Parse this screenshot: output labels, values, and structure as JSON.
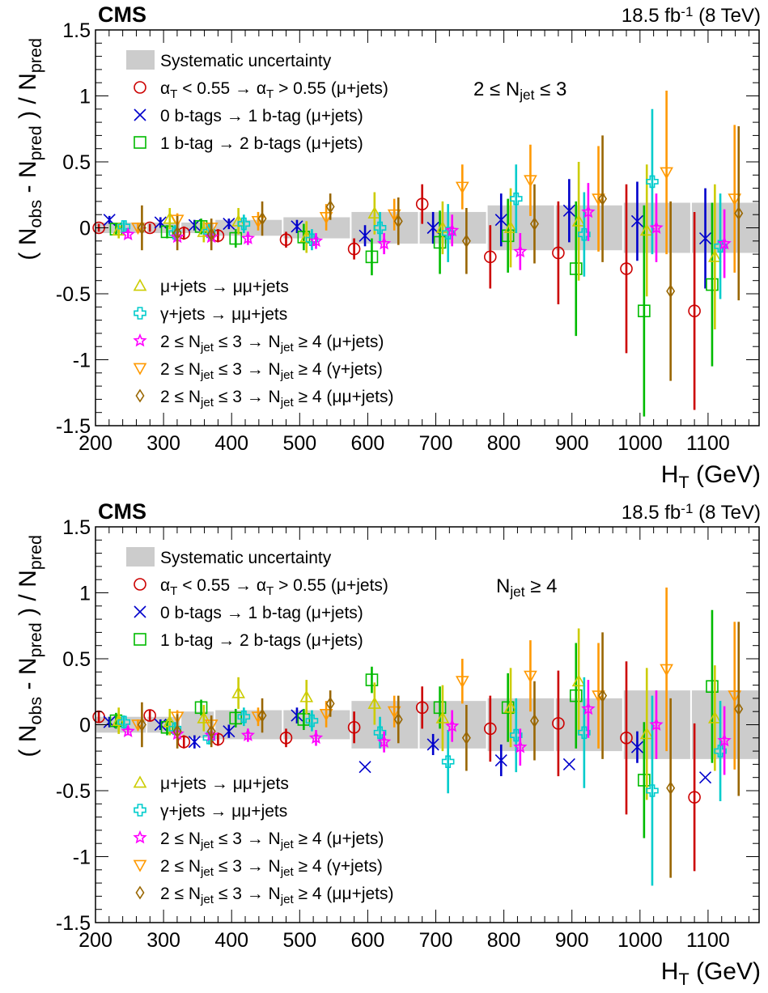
{
  "panels": [
    {
      "experiment": "CMS",
      "luminosity": "18.5 fb",
      "luminosity_exp": "-1",
      "energy": " (8 TeV)",
      "region": "2 ≤ N_jet ≤ 3",
      "legend_top": [
        {
          "key": "syst",
          "label": "Systematic uncertainty"
        },
        {
          "key": "alphaT",
          "label": "α_T < 0.55 → α_T > 0.55 (μ+jets)"
        },
        {
          "key": "btag01",
          "label": "0 b-tags → 1 b-tag (μ+jets)"
        },
        {
          "key": "btag12",
          "label": "1 b-tag → 2 b-tags (μ+jets)"
        }
      ],
      "legend_bottom": [
        {
          "key": "mu2mumu",
          "label": "μ+jets → μμ+jets"
        },
        {
          "key": "gam2mumu",
          "label": "γ+jets → μμ+jets"
        },
        {
          "key": "nj_mu",
          "label": "2 ≤ N_jet ≤ 3 → N_jet ≥ 4 (μ+jets)"
        },
        {
          "key": "nj_gam",
          "label": "2 ≤ N_jet ≤ 3 → N_jet ≥ 4 (γ+jets)"
        },
        {
          "key": "nj_mumu",
          "label": "2 ≤ N_jet ≤ 3 → N_jet ≥ 4 (μμ+jets)"
        }
      ]
    },
    {
      "experiment": "CMS",
      "luminosity": "18.5 fb",
      "luminosity_exp": "-1",
      "energy": " (8 TeV)",
      "region": "N_jet ≥ 4",
      "legend_top": [
        {
          "key": "syst",
          "label": "Systematic uncertainty"
        },
        {
          "key": "alphaT",
          "label": "α_T < 0.55 → α_T > 0.55 (μ+jets)"
        },
        {
          "key": "btag01",
          "label": "0 b-tags → 1 b-tag (μ+jets)"
        },
        {
          "key": "btag12",
          "label": "1 b-tag → 2 b-tags (μ+jets)"
        }
      ],
      "legend_bottom": [
        {
          "key": "mu2mumu",
          "label": "μ+jets → μμ+jets"
        },
        {
          "key": "gam2mumu",
          "label": "γ+jets → μμ+jets"
        },
        {
          "key": "nj_mu",
          "label": "2 ≤ N_jet ≤ 3 → N_jet ≥ 4 (μ+jets)"
        },
        {
          "key": "nj_gam",
          "label": "2 ≤ N_jet ≤ 3 → N_jet ≥ 4 (γ+jets)"
        },
        {
          "key": "nj_mumu",
          "label": "2 ≤ N_jet ≤ 3 → N_jet ≥ 4 (μμ+jets)"
        }
      ]
    }
  ],
  "chart_data": [
    {
      "type": "scatter",
      "xlabel": "H_T (GeV)",
      "ylabel": "( N_obs - N_pred ) / N_pred",
      "xlim": [
        200,
        1175
      ],
      "ylim": [
        -1.5,
        1.5
      ],
      "xticks": [
        200,
        300,
        400,
        500,
        600,
        700,
        800,
        900,
        1000,
        1100
      ],
      "yticks": [
        -1.5,
        -1,
        -0.5,
        0,
        0.5,
        1,
        1.5
      ],
      "grid": false,
      "systematic_bands": [
        {
          "x0": 200,
          "x1": 275,
          "unc": 0.04
        },
        {
          "x0": 275,
          "x1": 325,
          "unc": 0.04
        },
        {
          "x0": 325,
          "x1": 375,
          "unc": 0.04
        },
        {
          "x0": 375,
          "x1": 475,
          "unc": 0.06
        },
        {
          "x0": 475,
          "x1": 575,
          "unc": 0.08
        },
        {
          "x0": 575,
          "x1": 675,
          "unc": 0.12
        },
        {
          "x0": 675,
          "x1": 775,
          "unc": 0.12
        },
        {
          "x0": 775,
          "x1": 875,
          "unc": 0.17
        },
        {
          "x0": 875,
          "x1": 975,
          "unc": 0.17
        },
        {
          "x0": 975,
          "x1": 1075,
          "unc": 0.19
        },
        {
          "x0": 1075,
          "x1": 1175,
          "unc": 0.19
        }
      ],
      "series": [
        {
          "key": "alphaT",
          "marker": "circle",
          "color": "#cc0000",
          "offset": 5,
          "points": [
            [
              0.0,
              0.03
            ],
            [
              0.0,
              0.03
            ],
            [
              -0.04,
              0.05
            ],
            [
              -0.06,
              0.05
            ],
            [
              -0.09,
              0.06
            ],
            [
              -0.16,
              0.08
            ],
            [
              0.18,
              0.15
            ],
            [
              -0.22,
              0.24
            ],
            [
              -0.19,
              0.39
            ],
            [
              -0.31,
              0.64
            ],
            [
              -0.63,
              0.75
            ]
          ]
        },
        {
          "key": "btag01",
          "marker": "x",
          "color": "#0000cc",
          "offset": 21,
          "points": [
            [
              0.06,
              0.03
            ],
            [
              0.04,
              0.04
            ],
            [
              0.02,
              0.04
            ],
            [
              0.03,
              0.04
            ],
            [
              0.01,
              0.05
            ],
            [
              -0.06,
              0.08
            ],
            [
              0.0,
              0.12
            ],
            [
              0.06,
              0.2
            ],
            [
              0.13,
              0.24
            ],
            [
              0.05,
              0.3
            ],
            [
              -0.08,
              0.38
            ]
          ]
        },
        {
          "key": "btag12",
          "marker": "square",
          "color": "#00bb00",
          "offset": 31,
          "points": [
            [
              -0.01,
              0.04
            ],
            [
              -0.03,
              0.05
            ],
            [
              0.01,
              0.06
            ],
            [
              -0.08,
              0.07
            ],
            [
              -0.07,
              0.1
            ],
            [
              -0.22,
              0.14
            ],
            [
              -0.11,
              0.24
            ],
            [
              -0.06,
              0.28
            ],
            [
              -0.31,
              0.51
            ],
            [
              -0.63,
              0.8
            ],
            [
              -0.43,
              0.62
            ]
          ]
        },
        {
          "key": "mu2mumu",
          "marker": "triangle",
          "color": "#cccc00",
          "offset": 35,
          "points": [
            [
              -0.02,
              0.06
            ],
            [
              0.07,
              0.08
            ],
            [
              -0.03,
              0.08
            ],
            [
              0.05,
              0.1
            ],
            [
              -0.07,
              0.12
            ],
            [
              0.11,
              0.16
            ],
            [
              0.0,
              0.2
            ],
            [
              0.0,
              0.3
            ],
            [
              0.05,
              0.45
            ],
            [
              -0.02,
              0.5
            ],
            [
              -0.22,
              0.55
            ]
          ]
        },
        {
          "key": "gam2mumu",
          "marker": "cross",
          "color": "#00cccc",
          "offset": 43,
          "points": [
            [
              0.01,
              0.04
            ],
            [
              -0.04,
              0.06
            ],
            [
              -0.03,
              0.06
            ],
            [
              0.03,
              0.07
            ],
            [
              -0.09,
              0.08
            ],
            [
              0.0,
              0.12
            ],
            [
              -0.04,
              0.22
            ],
            [
              0.22,
              0.26
            ],
            [
              -0.05,
              0.32
            ],
            [
              0.35,
              0.55
            ],
            [
              -0.14,
              0.4
            ]
          ]
        },
        {
          "key": "nj_mu",
          "marker": "star",
          "color": "#ff00ff",
          "offset": 49,
          "points": [
            [
              -0.05,
              0.03
            ],
            [
              -0.07,
              0.04
            ],
            [
              -0.07,
              0.04
            ],
            [
              -0.08,
              0.05
            ],
            [
              -0.1,
              0.06
            ],
            [
              -0.12,
              0.08
            ],
            [
              -0.02,
              0.12
            ],
            [
              -0.18,
              0.14
            ],
            [
              0.12,
              0.22
            ],
            [
              0.0,
              0.26
            ],
            [
              -0.12,
              0.26
            ]
          ]
        },
        {
          "key": "nj_gam",
          "marker": "tridown",
          "color": "#ff9900",
          "offset": 64,
          "points": [
            [
              0.0,
              0.04
            ],
            [
              0.06,
              0.05
            ],
            [
              0.0,
              0.06
            ],
            [
              0.05,
              0.07
            ],
            [
              0.08,
              0.1
            ],
            [
              0.1,
              0.12
            ],
            [
              0.31,
              0.17
            ],
            [
              0.36,
              0.27
            ],
            [
              0.22,
              0.4
            ],
            [
              0.42,
              0.62
            ],
            [
              0.22,
              0.56
            ]
          ]
        },
        {
          "key": "nj_mumu",
          "marker": "diamond",
          "color": "#996600",
          "offset": 70,
          "points": [
            [
              0.0,
              0.17
            ],
            [
              -0.04,
              0.13
            ],
            [
              -0.05,
              0.12
            ],
            [
              0.07,
              0.13
            ],
            [
              0.16,
              0.1
            ],
            [
              0.05,
              0.18
            ],
            [
              -0.1,
              0.25
            ],
            [
              0.03,
              0.3
            ],
            [
              0.22,
              0.48
            ],
            [
              -0.48,
              0.68
            ],
            [
              0.11,
              0.66
            ]
          ]
        }
      ]
    },
    {
      "type": "scatter",
      "xlabel": "H_T (GeV)",
      "ylabel": "( N_obs - N_pred ) / N_pred",
      "xlim": [
        200,
        1175
      ],
      "ylim": [
        -1.5,
        1.5
      ],
      "xticks": [
        200,
        300,
        400,
        500,
        600,
        700,
        800,
        900,
        1000,
        1100
      ],
      "yticks": [
        -1.5,
        -1,
        -0.5,
        0,
        0.5,
        1,
        1.5
      ],
      "grid": false,
      "systematic_bands": [
        {
          "x0": 200,
          "x1": 275,
          "unc": 0.06
        },
        {
          "x0": 275,
          "x1": 325,
          "unc": 0.06
        },
        {
          "x0": 325,
          "x1": 375,
          "unc": 0.1
        },
        {
          "x0": 375,
          "x1": 475,
          "unc": 0.11
        },
        {
          "x0": 475,
          "x1": 575,
          "unc": 0.11
        },
        {
          "x0": 575,
          "x1": 675,
          "unc": 0.18
        },
        {
          "x0": 675,
          "x1": 775,
          "unc": 0.18
        },
        {
          "x0": 775,
          "x1": 875,
          "unc": 0.2
        },
        {
          "x0": 875,
          "x1": 975,
          "unc": 0.2
        },
        {
          "x0": 975,
          "x1": 1075,
          "unc": 0.26
        },
        {
          "x0": 1075,
          "x1": 1175,
          "unc": 0.26
        }
      ],
      "series": [
        {
          "key": "alphaT",
          "marker": "circle",
          "color": "#cc0000",
          "offset": 5,
          "points": [
            [
              0.06,
              0.04
            ],
            [
              0.07,
              0.04
            ],
            [
              -0.13,
              0.05
            ],
            [
              -0.11,
              0.05
            ],
            [
              -0.1,
              0.07
            ],
            [
              -0.02,
              0.12
            ],
            [
              0.13,
              0.16
            ],
            [
              -0.03,
              0.25
            ],
            [
              0.01,
              0.4
            ],
            [
              -0.1,
              0.58
            ],
            [
              -0.55,
              0.56
            ]
          ]
        },
        {
          "key": "btag01",
          "marker": "x",
          "color": "#0000cc",
          "offset": 21,
          "points": [
            [
              0.02,
              0.04
            ],
            [
              0.0,
              0.04
            ],
            [
              -0.13,
              0.05
            ],
            [
              -0.05,
              0.05
            ],
            [
              0.07,
              0.06
            ],
            [
              -0.32,
              0.0
            ],
            [
              -0.15,
              0.08
            ],
            [
              -0.27,
              0.12
            ],
            [
              -0.3,
              0.0
            ],
            [
              -0.17,
              0.12
            ],
            [
              -0.4,
              0.0
            ]
          ]
        },
        {
          "key": "btag12",
          "marker": "square",
          "color": "#00bb00",
          "offset": 31,
          "points": [
            [
              0.03,
              0.06
            ],
            [
              -0.02,
              0.06
            ],
            [
              0.13,
              0.06
            ],
            [
              0.05,
              0.07
            ],
            [
              0.04,
              0.08
            ],
            [
              0.34,
              0.1
            ],
            [
              0.13,
              0.16
            ],
            [
              0.13,
              0.26
            ],
            [
              0.22,
              0.4
            ],
            [
              -0.42,
              0.44
            ],
            [
              0.29,
              0.58
            ]
          ]
        },
        {
          "key": "mu2mumu",
          "marker": "triangle",
          "color": "#cccc00",
          "offset": 35,
          "points": [
            [
              0.03,
              0.1
            ],
            [
              0.02,
              0.1
            ],
            [
              0.05,
              0.1
            ],
            [
              0.24,
              0.12
            ],
            [
              0.21,
              0.13
            ],
            [
              0.16,
              0.16
            ],
            [
              0.05,
              0.25
            ],
            [
              0.13,
              0.3
            ],
            [
              0.33,
              0.4
            ],
            [
              -0.07,
              0.5
            ],
            [
              0.05,
              0.4
            ]
          ]
        },
        {
          "key": "gam2mumu",
          "marker": "cross",
          "color": "#00cccc",
          "offset": 43,
          "points": [
            [
              0.02,
              0.05
            ],
            [
              -0.03,
              0.05
            ],
            [
              -0.1,
              0.05
            ],
            [
              0.06,
              0.07
            ],
            [
              0.03,
              0.08
            ],
            [
              -0.06,
              0.12
            ],
            [
              -0.28,
              0.24
            ],
            [
              -0.08,
              0.28
            ],
            [
              -0.06,
              0.42
            ],
            [
              -0.5,
              0.72
            ],
            [
              -0.2,
              0.38
            ]
          ]
        },
        {
          "key": "nj_mu",
          "marker": "star",
          "color": "#ff00ff",
          "offset": 49,
          "points": [
            [
              -0.05,
              0.03
            ],
            [
              -0.07,
              0.04
            ],
            [
              -0.08,
              0.04
            ],
            [
              -0.08,
              0.05
            ],
            [
              -0.1,
              0.06
            ],
            [
              -0.13,
              0.08
            ],
            [
              -0.01,
              0.12
            ],
            [
              -0.17,
              0.14
            ],
            [
              0.12,
              0.22
            ],
            [
              0.0,
              0.26
            ],
            [
              -0.12,
              0.26
            ]
          ]
        },
        {
          "key": "nj_gam",
          "marker": "tridown",
          "color": "#ff9900",
          "offset": 64,
          "points": [
            [
              0.0,
              0.04
            ],
            [
              0.06,
              0.05
            ],
            [
              0.0,
              0.06
            ],
            [
              0.06,
              0.07
            ],
            [
              0.08,
              0.1
            ],
            [
              0.1,
              0.12
            ],
            [
              0.33,
              0.17
            ],
            [
              0.37,
              0.27
            ],
            [
              0.22,
              0.4
            ],
            [
              0.42,
              0.62
            ],
            [
              0.22,
              0.56
            ]
          ]
        },
        {
          "key": "nj_mumu",
          "marker": "diamond",
          "color": "#996600",
          "offset": 70,
          "points": [
            [
              0.0,
              0.17
            ],
            [
              -0.05,
              0.13
            ],
            [
              -0.05,
              0.12
            ],
            [
              0.07,
              0.13
            ],
            [
              0.16,
              0.1
            ],
            [
              0.04,
              0.18
            ],
            [
              -0.1,
              0.25
            ],
            [
              0.03,
              0.3
            ],
            [
              0.22,
              0.48
            ],
            [
              -0.48,
              0.68
            ],
            [
              0.12,
              0.66
            ]
          ]
        }
      ]
    }
  ]
}
